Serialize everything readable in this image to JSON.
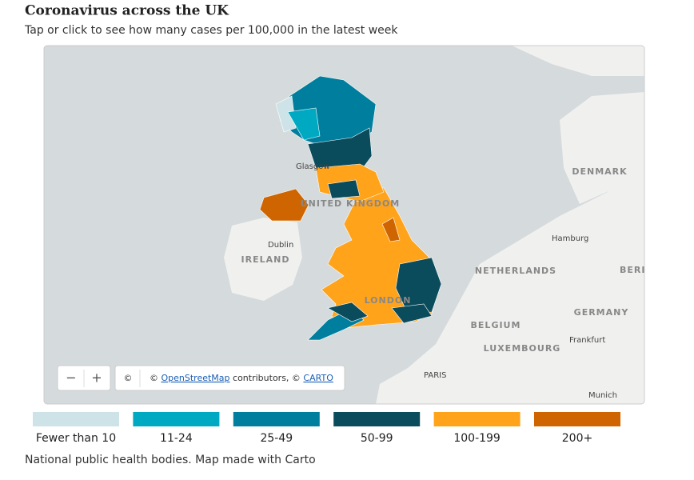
{
  "header": {
    "title": "Coronavirus across the UK",
    "subtitle": "Tap or click to see how many cases per 100,000 in the latest week"
  },
  "map": {
    "labels": [
      "Glasgow",
      "UNITED KINGDOM",
      "Dublin",
      "IRELAND",
      "LONDON",
      "DENMARK",
      "Hamburg",
      "NETHERLANDS",
      "BERLI",
      "BELGIUM",
      "GERMANY",
      "Frankfurt",
      "LUXEMBOURG",
      "PARIS",
      "Munich"
    ],
    "controls": {
      "zoom_out": "−",
      "zoom_in": "+",
      "info": "©"
    },
    "attribution": [
      "©",
      "OpenStreetMap",
      "contributors, ©",
      "CARTO"
    ]
  },
  "legend": [
    {
      "label": "Fewer than 10",
      "color": "#cde3e7"
    },
    {
      "label": "11-24",
      "color": "#00a9c2"
    },
    {
      "label": "25-49",
      "color": "#007e9e"
    },
    {
      "label": "50-99",
      "color": "#0a4b5c"
    },
    {
      "label": "100-199",
      "color": "#ffa31a"
    },
    {
      "label": "200+",
      "color": "#cf6500"
    }
  ],
  "footer": "National public health bodies. Map made with Carto"
}
